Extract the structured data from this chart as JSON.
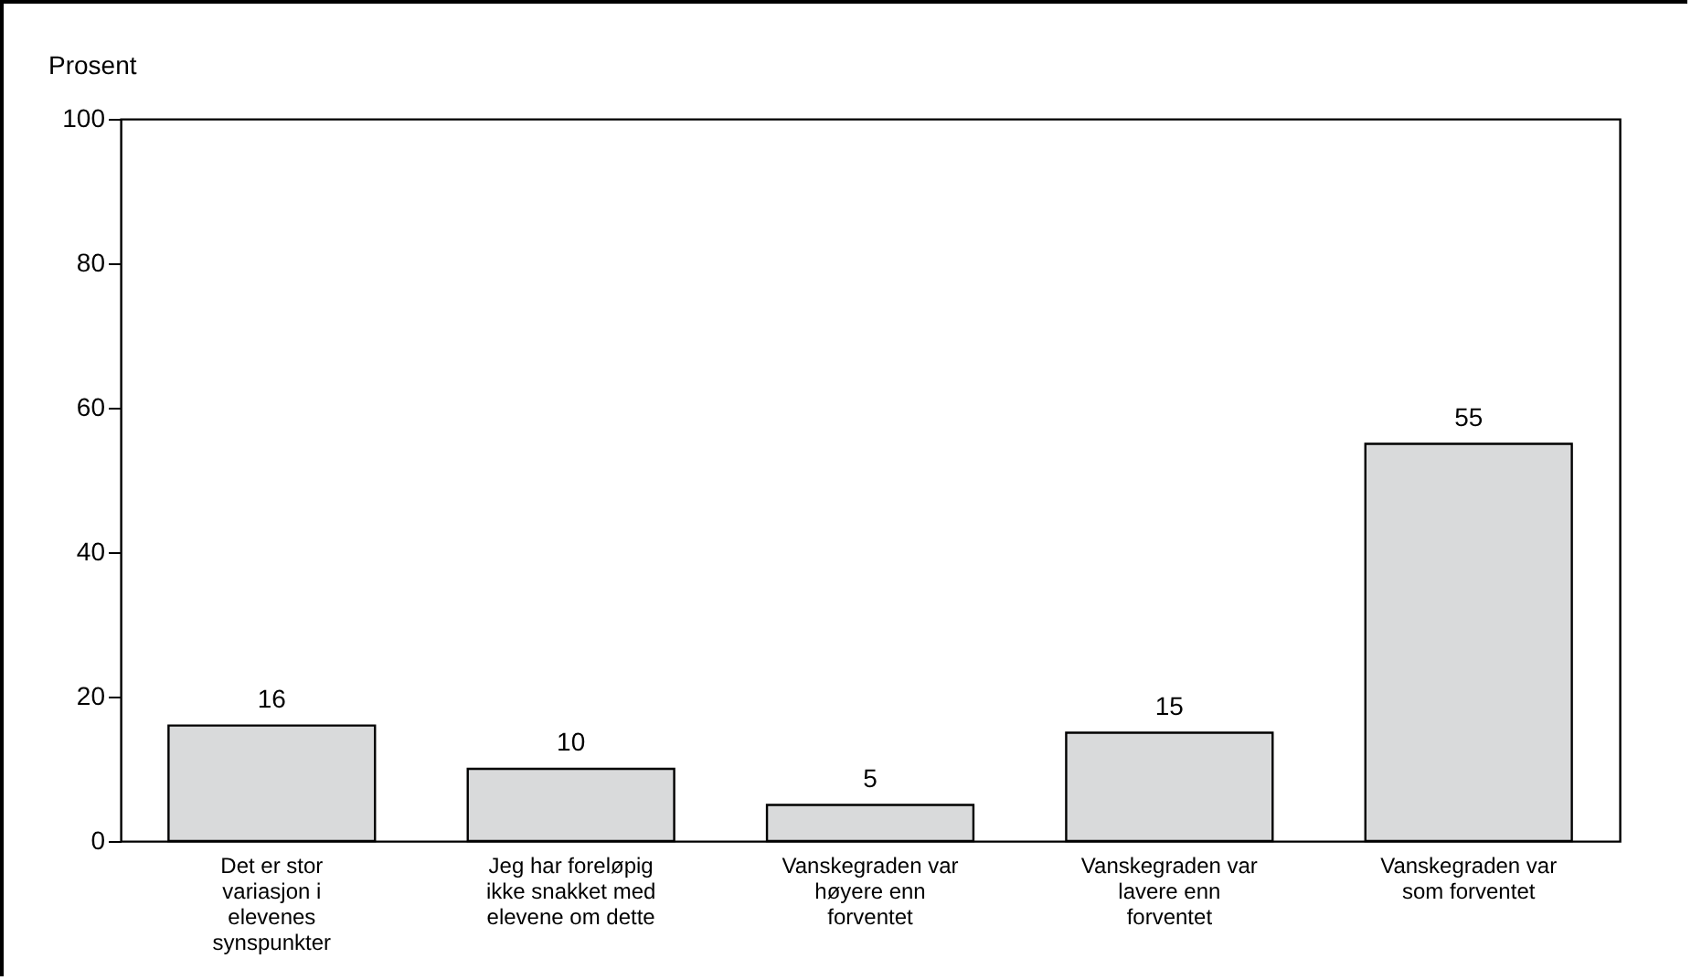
{
  "chart_data": {
    "type": "bar",
    "ylabel": "Prosent",
    "categories": [
      "Det er stor variasjon i elevenes synspunkter",
      "Jeg har foreløpig ikke snakket med elevene om dette",
      "Vanskegraden var høyere enn forventet",
      "Vanskegraden var lavere enn forventet",
      "Vanskegraden var som forventet"
    ],
    "values": [
      16,
      10,
      5,
      15,
      55
    ],
    "color": "#d9dadb",
    "ylim": [
      0,
      100
    ],
    "yticks": [
      0,
      20,
      40,
      60,
      80,
      100
    ],
    "grid": false,
    "data_labels": true
  }
}
